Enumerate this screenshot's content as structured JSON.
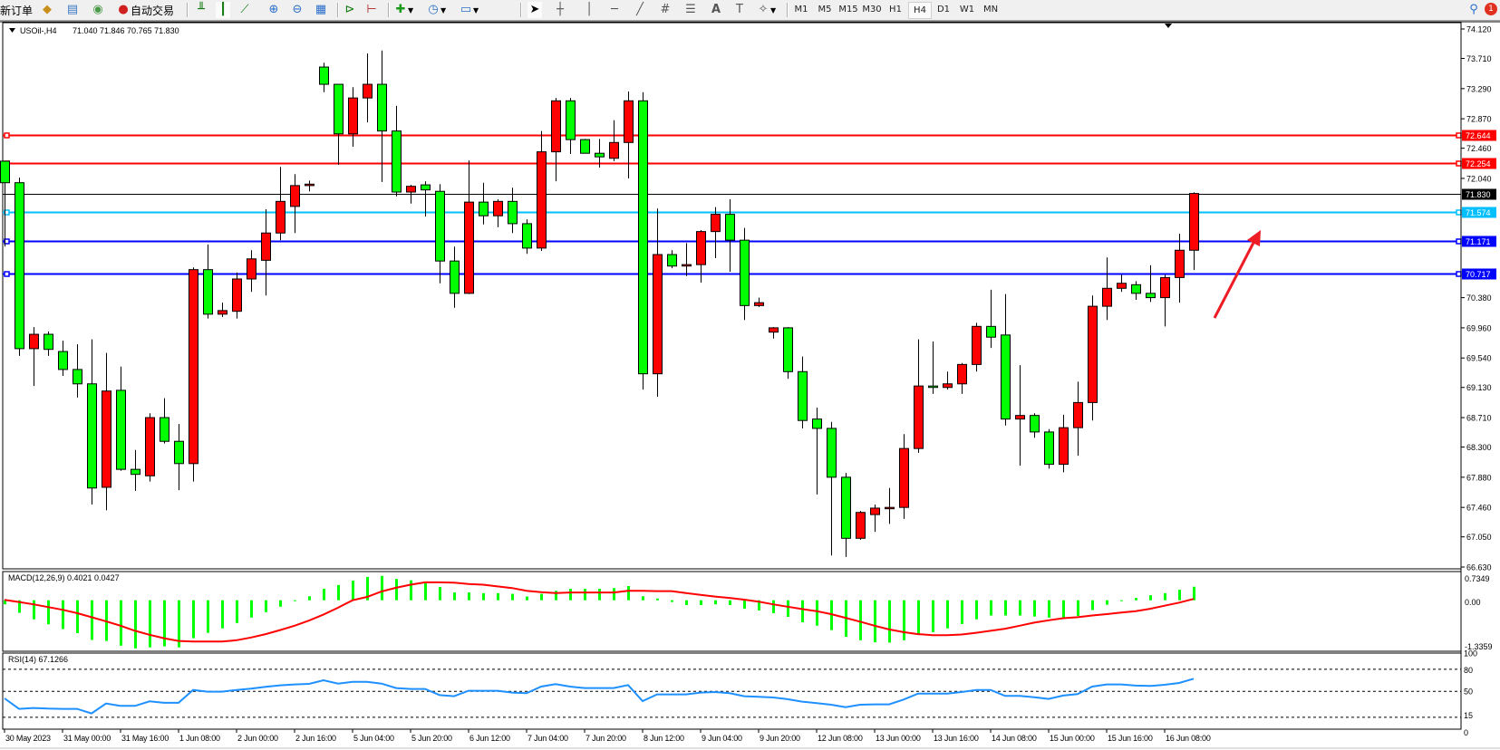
{
  "toolbar": {
    "new_order": "新订单",
    "auto_trading": "自动交易",
    "timeframes": [
      "M1",
      "M5",
      "M15",
      "M30",
      "H1",
      "H4",
      "D1",
      "W1",
      "MN"
    ],
    "active_timeframe": "H4",
    "alert_count": "1",
    "icons": [
      "new-order-icon",
      "gold-icon",
      "market-watch-icon",
      "signals-icon",
      "auto-trading-icon",
      "bar-chart-icon",
      "candlestick-icon",
      "line-chart-icon",
      "zoom-in-icon",
      "zoom-out-icon",
      "tile-windows-icon",
      "auto-scroll-icon",
      "chart-shift-icon",
      "indicators-icon",
      "periods-icon",
      "templates-icon",
      "cursor-icon",
      "crosshair-icon",
      "vertical-line-icon",
      "horizontal-line-icon",
      "trendline-icon",
      "equidistant-channel-icon",
      "fibonacci-icon",
      "text-icon",
      "text-label-icon",
      "arrows-icon",
      "search-icon"
    ]
  },
  "chart": {
    "symbol": "USOil-,H4",
    "ohlc_text": "71.040 71.846 70.765 71.830",
    "price_axis_labels": [
      "74.120",
      "73.710",
      "73.290",
      "72.870",
      "72.460",
      "72.040",
      "70.380",
      "69.960",
      "69.540",
      "69.130",
      "68.710",
      "68.300",
      "67.880",
      "67.460",
      "67.050",
      "66.630"
    ],
    "levels": [
      {
        "price": "72.644",
        "color": "#ff0000"
      },
      {
        "price": "72.254",
        "color": "#ff0000"
      },
      {
        "price": "71.830",
        "color": "#000000"
      },
      {
        "price": "71.574",
        "color": "#00bfff"
      },
      {
        "price": "71.171",
        "color": "#0000ff"
      },
      {
        "price": "70.717",
        "color": "#0000ff"
      }
    ],
    "bull_color": "#ff0000",
    "bear_color": "#00ff00",
    "annotation": "red-arrow-up"
  },
  "chart_data": {
    "type": "candlestick",
    "time_labels": [
      "30 May 2023",
      "31 May 00:00",
      "31 May 16:00",
      "1 Jun 08:00",
      "2 Jun 00:00",
      "2 Jun 16:00",
      "5 Jun 04:00",
      "5 Jun 20:00",
      "6 Jun 12:00",
      "7 Jun 04:00",
      "7 Jun 20:00",
      "8 Jun 12:00",
      "9 Jun 04:00",
      "9 Jun 20:00",
      "12 Jun 08:00",
      "13 Jun 00:00",
      "13 Jun 16:00",
      "14 Jun 08:00",
      "15 Jun 00:00",
      "15 Jun 16:00",
      "16 Jun 08:00"
    ],
    "ylim": [
      66.63,
      74.12
    ],
    "ohlc": [
      [
        72.28,
        72.28,
        71.09,
        71.98
      ],
      [
        71.98,
        72.05,
        69.57,
        69.67
      ],
      [
        69.67,
        69.97,
        69.15,
        69.87
      ],
      [
        69.87,
        69.91,
        69.57,
        69.66
      ],
      [
        69.63,
        69.78,
        69.29,
        69.38
      ],
      [
        69.38,
        69.73,
        68.99,
        69.18
      ],
      [
        69.18,
        69.8,
        67.5,
        67.73
      ],
      [
        67.74,
        69.61,
        67.42,
        69.08
      ],
      [
        69.09,
        69.42,
        67.97,
        67.99
      ],
      [
        67.99,
        68.26,
        67.69,
        67.92
      ],
      [
        67.9,
        68.77,
        67.82,
        68.71
      ],
      [
        68.71,
        68.98,
        68.35,
        68.38
      ],
      [
        68.38,
        68.62,
        67.7,
        68.07
      ],
      [
        68.07,
        70.8,
        67.82,
        70.77
      ],
      [
        70.77,
        71.12,
        70.09,
        70.15
      ],
      [
        70.15,
        70.31,
        70.11,
        70.2
      ],
      [
        70.19,
        70.73,
        70.09,
        70.64
      ],
      [
        70.64,
        71.04,
        70.46,
        70.92
      ],
      [
        70.9,
        71.61,
        70.41,
        71.28
      ],
      [
        71.28,
        72.2,
        71.18,
        71.72
      ],
      [
        71.65,
        72.1,
        71.28,
        71.94
      ],
      [
        71.94,
        72.01,
        71.86,
        71.96
      ],
      [
        73.59,
        73.65,
        73.24,
        73.35
      ],
      [
        73.35,
        73.35,
        72.23,
        72.66
      ],
      [
        72.66,
        73.31,
        72.48,
        73.16
      ],
      [
        73.16,
        73.78,
        72.82,
        73.35
      ],
      [
        73.35,
        73.82,
        71.99,
        72.7
      ],
      [
        72.7,
        73.05,
        71.79,
        71.85
      ],
      [
        71.85,
        71.95,
        71.69,
        71.93
      ],
      [
        71.95,
        72.0,
        71.51,
        71.88
      ],
      [
        71.86,
        71.96,
        70.58,
        70.89
      ],
      [
        70.89,
        71.09,
        70.24,
        70.44
      ],
      [
        70.44,
        72.29,
        70.43,
        71.71
      ],
      [
        71.71,
        71.98,
        71.4,
        71.52
      ],
      [
        71.52,
        71.75,
        71.36,
        71.72
      ],
      [
        71.72,
        71.91,
        71.28,
        71.41
      ],
      [
        71.41,
        71.47,
        70.99,
        71.07
      ],
      [
        71.07,
        72.7,
        71.03,
        72.41
      ],
      [
        72.41,
        73.16,
        72.0,
        73.12
      ],
      [
        73.12,
        73.16,
        72.38,
        72.58
      ],
      [
        72.58,
        72.59,
        72.39,
        72.39
      ],
      [
        72.39,
        72.59,
        72.19,
        72.34
      ],
      [
        72.32,
        72.85,
        72.28,
        72.54
      ],
      [
        72.54,
        73.25,
        72.04,
        73.12
      ],
      [
        73.12,
        73.24,
        69.1,
        69.32
      ],
      [
        69.32,
        71.62,
        69.0,
        70.98
      ],
      [
        70.98,
        71.04,
        70.79,
        70.82
      ],
      [
        70.82,
        71.14,
        70.68,
        70.84
      ],
      [
        70.84,
        71.32,
        70.59,
        71.3
      ],
      [
        71.3,
        71.64,
        70.93,
        71.54
      ],
      [
        71.54,
        71.75,
        70.74,
        71.18
      ],
      [
        71.18,
        71.35,
        70.07,
        70.27
      ],
      [
        70.27,
        70.38,
        70.25,
        70.31
      ],
      [
        69.9,
        69.97,
        69.81,
        69.96
      ],
      [
        69.96,
        69.97,
        69.25,
        69.35
      ],
      [
        69.35,
        69.56,
        68.56,
        68.67
      ],
      [
        68.69,
        68.85,
        67.64,
        68.56
      ],
      [
        68.56,
        68.65,
        66.79,
        67.88
      ],
      [
        67.88,
        67.94,
        66.77,
        67.03
      ],
      [
        67.03,
        67.41,
        67.01,
        67.39
      ],
      [
        67.36,
        67.5,
        67.12,
        67.45
      ],
      [
        67.45,
        67.73,
        67.23,
        67.46
      ],
      [
        67.46,
        68.48,
        67.3,
        68.28
      ],
      [
        68.28,
        69.8,
        68.22,
        69.15
      ],
      [
        69.15,
        69.77,
        69.04,
        69.13
      ],
      [
        69.13,
        69.35,
        69.1,
        69.18
      ],
      [
        69.18,
        69.47,
        69.04,
        69.45
      ],
      [
        69.45,
        70.03,
        69.35,
        69.98
      ],
      [
        69.98,
        70.49,
        69.68,
        69.83
      ],
      [
        69.86,
        70.43,
        68.6,
        68.69
      ],
      [
        68.69,
        69.44,
        68.04,
        68.74
      ],
      [
        68.74,
        68.77,
        68.43,
        68.51
      ],
      [
        68.51,
        68.55,
        68.0,
        68.06
      ],
      [
        68.06,
        68.75,
        67.95,
        68.57
      ],
      [
        68.57,
        69.21,
        68.18,
        68.92
      ],
      [
        68.92,
        70.41,
        68.67,
        70.26
      ],
      [
        70.26,
        70.94,
        70.07,
        70.51
      ],
      [
        70.51,
        70.7,
        70.46,
        70.58
      ],
      [
        70.56,
        70.61,
        70.35,
        70.44
      ],
      [
        70.44,
        70.83,
        70.32,
        70.38
      ],
      [
        70.38,
        70.7,
        69.98,
        70.66
      ],
      [
        70.66,
        71.27,
        70.31,
        71.04
      ],
      [
        71.04,
        71.846,
        70.765,
        71.83
      ]
    ],
    "macd": {
      "label": "MACD(12,26,9) 0.4021 0.0427",
      "axis_labels": [
        "0.7349",
        "0.00",
        "-1.3359"
      ],
      "ylim": [
        -1.3359,
        0.7349
      ],
      "histogram_color": "#00ff00",
      "signal_color": "#ff0000",
      "histogram": [
        -0.12,
        -0.37,
        -0.56,
        -0.71,
        -0.85,
        -0.97,
        -1.17,
        -1.2,
        -1.34,
        -1.42,
        -1.39,
        -1.36,
        -1.39,
        -1.12,
        -0.96,
        -0.83,
        -0.67,
        -0.51,
        -0.35,
        -0.19,
        -0.02,
        0.12,
        0.34,
        0.45,
        0.58,
        0.69,
        0.72,
        0.63,
        0.59,
        0.5,
        0.39,
        0.23,
        0.23,
        0.21,
        0.21,
        0.19,
        0.11,
        0.19,
        0.28,
        0.34,
        0.34,
        0.34,
        0.36,
        0.42,
        0.12,
        0.05,
        -0.05,
        -0.14,
        -0.14,
        -0.12,
        -0.14,
        -0.25,
        -0.3,
        -0.38,
        -0.49,
        -0.65,
        -0.75,
        -0.88,
        -1.08,
        -1.18,
        -1.24,
        -1.25,
        -1.18,
        -1.01,
        -0.94,
        -0.83,
        -0.7,
        -0.56,
        -0.45,
        -0.45,
        -0.45,
        -0.48,
        -0.51,
        -0.51,
        -0.46,
        -0.29,
        -0.13,
        -0.02,
        0.07,
        0.15,
        0.21,
        0.31,
        0.4
      ],
      "signal": [
        0.01,
        -0.05,
        -0.12,
        -0.2,
        -0.28,
        -0.38,
        -0.5,
        -0.62,
        -0.75,
        -0.9,
        -1.02,
        -1.12,
        -1.2,
        -1.22,
        -1.22,
        -1.22,
        -1.18,
        -1.1,
        -1.0,
        -0.88,
        -0.75,
        -0.6,
        -0.42,
        -0.22,
        0.0,
        0.1,
        0.26,
        0.37,
        0.46,
        0.53,
        0.53,
        0.52,
        0.48,
        0.46,
        0.41,
        0.36,
        0.28,
        0.24,
        0.21,
        0.23,
        0.23,
        0.23,
        0.23,
        0.28,
        0.28,
        0.27,
        0.27,
        0.21,
        0.16,
        0.11,
        0.07,
        0.02,
        -0.04,
        -0.12,
        -0.19,
        -0.26,
        -0.32,
        -0.41,
        -0.52,
        -0.63,
        -0.75,
        -0.86,
        -0.94,
        -1.0,
        -1.03,
        -1.03,
        -1.01,
        -0.96,
        -0.9,
        -0.84,
        -0.75,
        -0.66,
        -0.59,
        -0.53,
        -0.5,
        -0.45,
        -0.41,
        -0.36,
        -0.32,
        -0.25,
        -0.16,
        -0.07,
        0.04
      ]
    },
    "rsi": {
      "label": "RSI(14) 67.1266",
      "axis_labels": [
        "100",
        "80",
        "50",
        "15",
        "0"
      ],
      "levels": [
        80,
        50,
        15
      ],
      "ylim": [
        0,
        100
      ],
      "color": "#1e90ff",
      "values": [
        40.6,
        26.3,
        27.5,
        26.7,
        26.3,
        26.3,
        20.2,
        33.6,
        30.4,
        30.4,
        36.5,
        34.5,
        34.5,
        52.0,
        49.6,
        49.6,
        52.0,
        53.7,
        56.1,
        58.2,
        59.4,
        60.2,
        65.1,
        60.6,
        63.0,
        63.0,
        60.6,
        54.5,
        53.3,
        53.3,
        45.0,
        43.5,
        50.8,
        50.8,
        50.8,
        48.4,
        47.5,
        56.5,
        59.8,
        56.5,
        54.5,
        54.5,
        54.5,
        58.6,
        36.9,
        45.9,
        45.9,
        45.9,
        48.4,
        49.2,
        47.5,
        43.5,
        42.6,
        41.8,
        39.4,
        36.1,
        34.1,
        32.0,
        28.7,
        32.0,
        32.4,
        32.4,
        39.0,
        47.1,
        47.1,
        47.1,
        49.2,
        52.0,
        52.0,
        43.9,
        43.9,
        42.2,
        39.8,
        44.3,
        46.3,
        56.5,
        59.4,
        59.4,
        57.8,
        57.4,
        59.0,
        61.4,
        67.13
      ]
    }
  }
}
